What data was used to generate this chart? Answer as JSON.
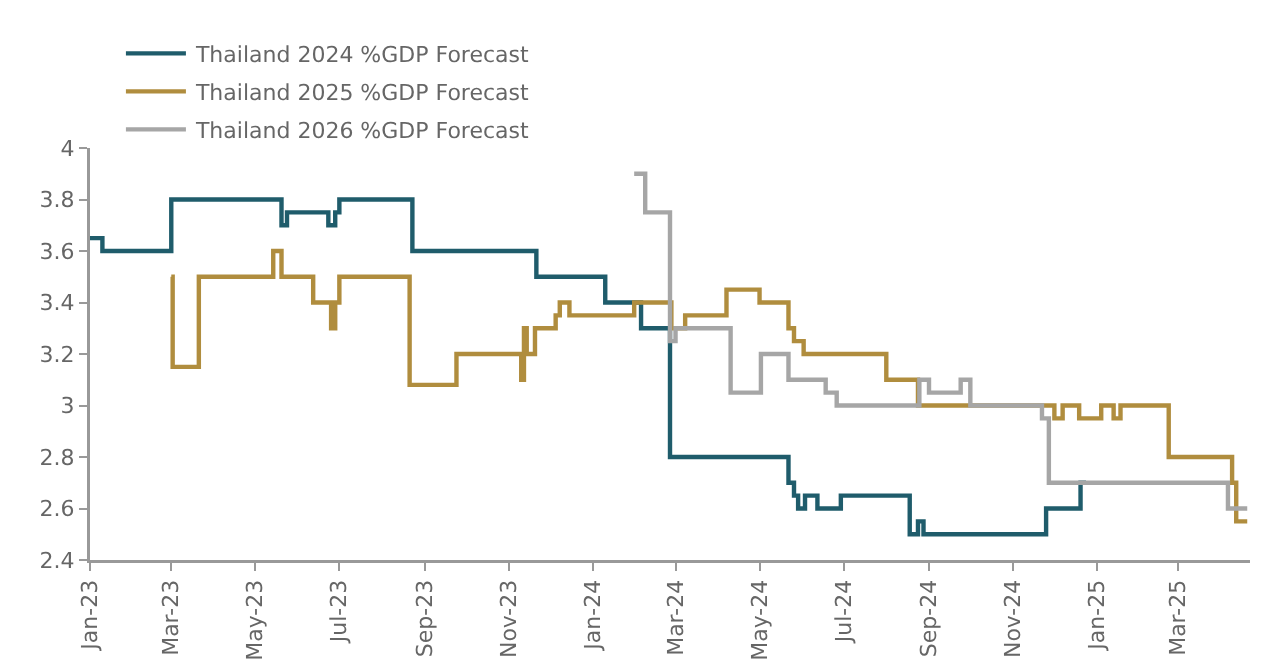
{
  "chart_data": {
    "type": "step",
    "legend": "top",
    "grid": false,
    "ylim": [
      2.4,
      4
    ],
    "yticks": [
      2.4,
      2.6,
      2.8,
      3,
      3.2,
      3.4,
      3.6,
      3.8,
      4
    ],
    "xlim": [
      "2023-01-01",
      "2025-04-22"
    ],
    "xticks": [
      {
        "value": "2023-01-01",
        "label": "Jan-23"
      },
      {
        "value": "2023-03-01",
        "label": "Mar-23"
      },
      {
        "value": "2023-05-01",
        "label": "May-23"
      },
      {
        "value": "2023-07-01",
        "label": "Jul-23"
      },
      {
        "value": "2023-09-01",
        "label": "Sep-23"
      },
      {
        "value": "2023-11-01",
        "label": "Nov-23"
      },
      {
        "value": "2024-01-01",
        "label": "Jan-24"
      },
      {
        "value": "2024-03-01",
        "label": "Mar-24"
      },
      {
        "value": "2024-05-01",
        "label": "May-24"
      },
      {
        "value": "2024-07-01",
        "label": "Jul-24"
      },
      {
        "value": "2024-09-01",
        "label": "Sep-24"
      },
      {
        "value": "2024-11-01",
        "label": "Nov-24"
      },
      {
        "value": "2025-01-01",
        "label": "Jan-25"
      },
      {
        "value": "2025-03-01",
        "label": "Mar-25"
      }
    ],
    "series": [
      {
        "name": "Thailand 2024 %GDP Forecast",
        "color": "#1f5c6b",
        "x": [
          "2023-01-01",
          "2023-01-10",
          "2023-03-01",
          "2023-05-20",
          "2023-05-24",
          "2023-06-23",
          "2023-06-28",
          "2023-07-01",
          "2023-08-23",
          "2023-11-21",
          "2024-01-10",
          "2024-02-05",
          "2024-02-26",
          "2024-05-22",
          "2024-05-26",
          "2024-05-29",
          "2024-06-03",
          "2024-06-12",
          "2024-06-29",
          "2024-08-18",
          "2024-08-24",
          "2024-08-28",
          "2024-09-05",
          "2024-11-25",
          "2024-12-20",
          "2024-12-24"
        ],
        "values": [
          3.65,
          3.6,
          3.8,
          3.7,
          3.75,
          3.7,
          3.75,
          3.8,
          3.6,
          3.5,
          3.4,
          3.3,
          2.8,
          2.7,
          2.65,
          2.6,
          2.65,
          2.6,
          2.65,
          2.5,
          2.55,
          2.5,
          2.5,
          2.6,
          2.7,
          2.7
        ]
      },
      {
        "name": "Thailand 2025 %GDP Forecast",
        "color": "#b08d3e",
        "x": [
          "2023-03-01",
          "2023-03-02",
          "2023-03-21",
          "2023-05-14",
          "2023-05-20",
          "2023-06-12",
          "2023-06-25",
          "2023-06-28",
          "2023-07-01",
          "2023-08-21",
          "2023-09-24",
          "2023-11-10",
          "2023-11-12",
          "2023-11-14",
          "2023-11-20",
          "2023-12-05",
          "2023-12-08",
          "2023-12-15",
          "2024-01-31",
          "2024-02-27",
          "2024-03-08",
          "2024-04-07",
          "2024-05-01",
          "2024-05-22",
          "2024-05-26",
          "2024-06-02",
          "2024-08-01",
          "2024-08-24",
          "2024-12-01",
          "2024-12-07",
          "2024-12-19",
          "2025-01-04",
          "2025-01-13",
          "2025-01-18",
          "2025-02-22",
          "2025-04-09",
          "2025-04-12",
          "2025-04-17",
          "2025-04-20"
        ],
        "values": [
          3.5,
          3.15,
          3.5,
          3.6,
          3.5,
          3.4,
          3.3,
          3.4,
          3.5,
          3.08,
          3.2,
          3.1,
          3.3,
          3.2,
          3.3,
          3.35,
          3.4,
          3.35,
          3.4,
          3.3,
          3.35,
          3.45,
          3.4,
          3.3,
          3.25,
          3.2,
          3.1,
          3,
          2.95,
          3,
          2.95,
          3,
          2.95,
          3,
          2.8,
          2.7,
          2.55,
          2.55,
          2.55
        ]
      },
      {
        "name": "Thailand 2026 %GDP Forecast",
        "color": "#a6a6a6",
        "x": [
          "2024-01-31",
          "2024-02-08",
          "2024-02-26",
          "2024-03-01",
          "2024-04-10",
          "2024-05-02",
          "2024-05-22",
          "2024-06-18",
          "2024-06-26",
          "2024-08-25",
          "2024-09-01",
          "2024-09-24",
          "2024-10-01",
          "2024-11-22",
          "2024-11-27",
          "2025-04-06",
          "2025-04-20"
        ],
        "values": [
          3.9,
          3.75,
          3.25,
          3.3,
          3.05,
          3.2,
          3.1,
          3.05,
          3,
          3.1,
          3.05,
          3.1,
          3,
          2.95,
          2.7,
          2.6,
          2.6
        ]
      }
    ]
  }
}
